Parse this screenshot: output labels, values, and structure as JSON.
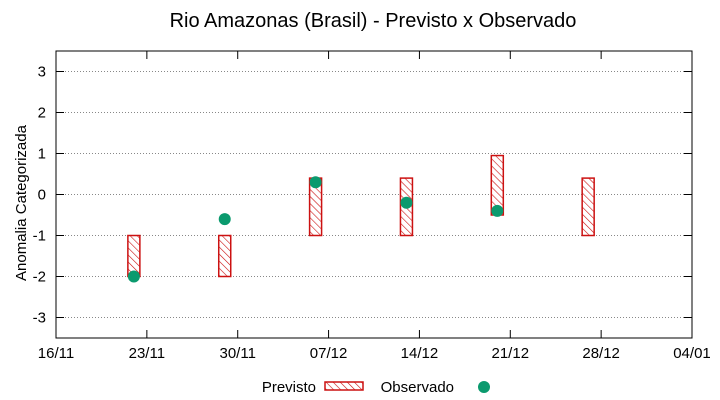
{
  "chart_data": {
    "type": "scatter",
    "title": "Rio Amazonas (Brasil) - Previsto x Observado",
    "xlabel": "",
    "ylabel": "Anomalia Categorizada",
    "ylim": [
      -3.5,
      3.5
    ],
    "yticks": [
      -3,
      -2,
      -1,
      0,
      1,
      2,
      3
    ],
    "ytick_labels": [
      "-3",
      "-2",
      "-1",
      "0",
      "1",
      "2",
      "3"
    ],
    "xlim": [
      0,
      49
    ],
    "xticks": [
      0,
      7,
      14,
      21,
      28,
      35,
      42,
      49
    ],
    "xtick_labels": [
      "16/11",
      "23/11",
      "30/11",
      "07/12",
      "14/12",
      "21/12",
      "28/12",
      "04/01"
    ],
    "grid": true,
    "legend_position": "bottom-center",
    "series": [
      {
        "name": "Previsto",
        "kind": "range-bar",
        "color": "#cc1111",
        "x": [
          6,
          13,
          20,
          27,
          34,
          41
        ],
        "low": [
          -2,
          -2,
          -1,
          -1,
          -0.5,
          -1
        ],
        "high": [
          -1,
          -1,
          0.4,
          0.4,
          0.95,
          0.4
        ]
      },
      {
        "name": "Observado",
        "kind": "point",
        "color": "#0b9a6e",
        "x": [
          6,
          13,
          20,
          27,
          34
        ],
        "values": [
          -2,
          -0.6,
          0.3,
          -0.2,
          -0.4
        ]
      }
    ]
  }
}
